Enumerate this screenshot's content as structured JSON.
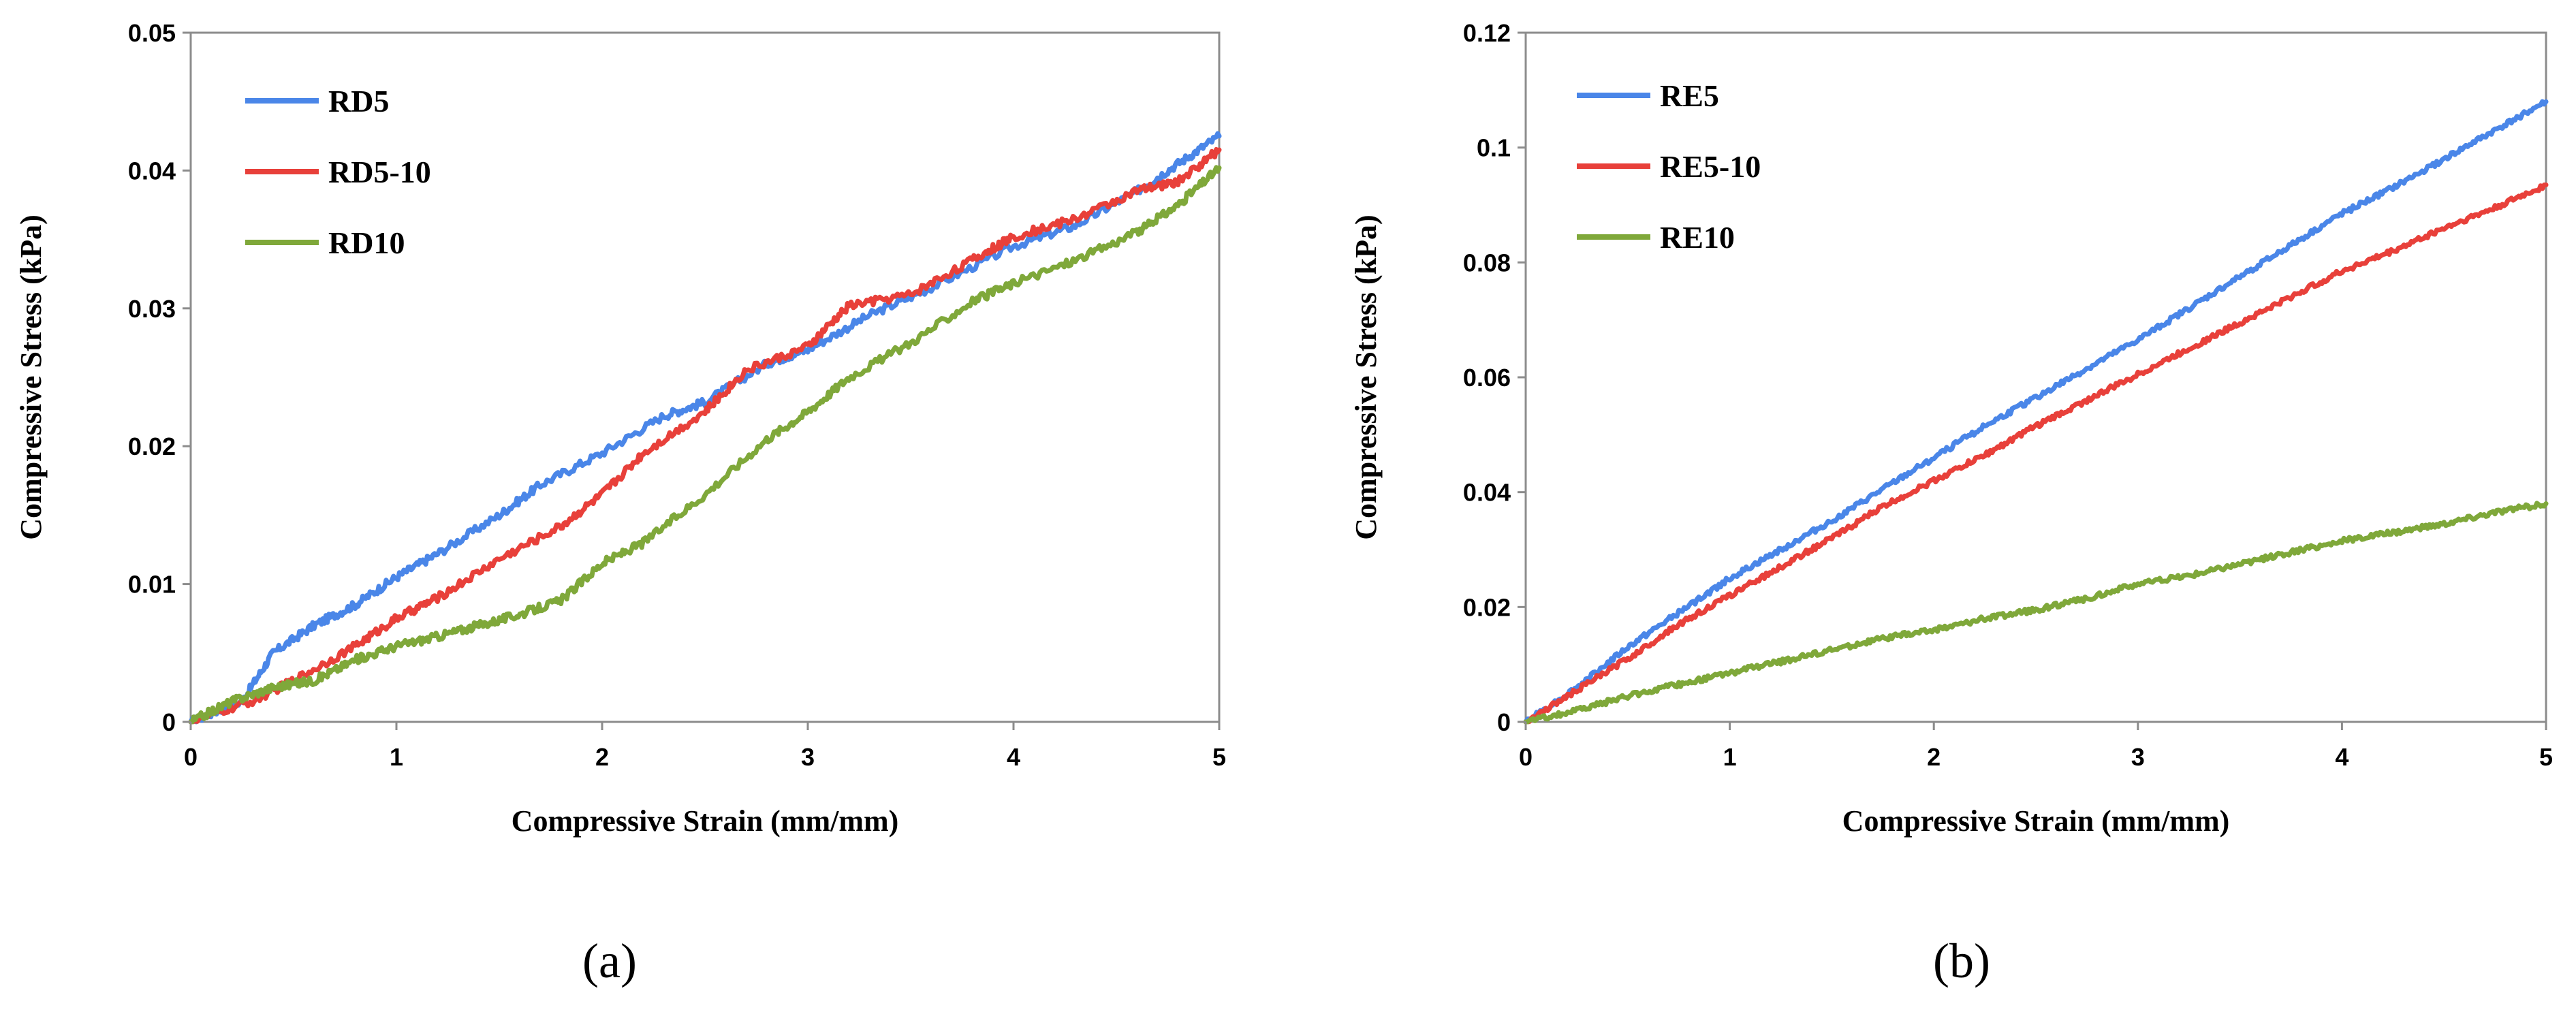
{
  "chart_data": [
    {
      "type": "line",
      "panel_label": "(a)",
      "xlabel": "Compressive Strain (mm/mm)",
      "ylabel": "Compressive Stress (kPa)",
      "xlim": [
        0,
        5
      ],
      "ylim": [
        0,
        0.05
      ],
      "x_ticks": [
        "0",
        "1",
        "2",
        "3",
        "4",
        "5"
      ],
      "y_ticks": [
        "0",
        "0.01",
        "0.02",
        "0.03",
        "0.04",
        "0.05"
      ],
      "legend_position": "top-left",
      "series": [
        {
          "name": "RD5",
          "color": "#4a86e8",
          "points": [
            [
              0,
              0
            ],
            [
              0.25,
              0.0015
            ],
            [
              0.4,
              0.005
            ],
            [
              0.6,
              0.007
            ],
            [
              0.8,
              0.0085
            ],
            [
              1.0,
              0.0105
            ],
            [
              1.2,
              0.0122
            ],
            [
              1.5,
              0.015
            ],
            [
              1.7,
              0.0172
            ],
            [
              2.0,
              0.0195
            ],
            [
              2.3,
              0.0222
            ],
            [
              2.5,
              0.0232
            ],
            [
              2.8,
              0.026
            ],
            [
              3.0,
              0.027
            ],
            [
              3.3,
              0.0295
            ],
            [
              3.6,
              0.0315
            ],
            [
              4.0,
              0.0345
            ],
            [
              4.3,
              0.036
            ],
            [
              4.6,
              0.0385
            ],
            [
              4.8,
              0.0405
            ],
            [
              5.0,
              0.0425
            ]
          ]
        },
        {
          "name": "RD5-10",
          "color": "#e8403a",
          "points": [
            [
              0,
              0
            ],
            [
              0.3,
              0.0015
            ],
            [
              0.5,
              0.003
            ],
            [
              0.8,
              0.0055
            ],
            [
              1.0,
              0.0075
            ],
            [
              1.2,
              0.009
            ],
            [
              1.5,
              0.0118
            ],
            [
              1.8,
              0.0142
            ],
            [
              2.0,
              0.0165
            ],
            [
              2.2,
              0.0195
            ],
            [
              2.5,
              0.0225
            ],
            [
              2.7,
              0.0255
            ],
            [
              3.0,
              0.0272
            ],
            [
              3.2,
              0.0302
            ],
            [
              3.5,
              0.031
            ],
            [
              3.8,
              0.0335
            ],
            [
              4.0,
              0.0352
            ],
            [
              4.3,
              0.0365
            ],
            [
              4.6,
              0.0385
            ],
            [
              4.8,
              0.0392
            ],
            [
              5.0,
              0.0415
            ]
          ]
        },
        {
          "name": "RD10",
          "color": "#7fa83a",
          "points": [
            [
              0,
              0
            ],
            [
              0.2,
              0.0015
            ],
            [
              0.4,
              0.0025
            ],
            [
              0.6,
              0.003
            ],
            [
              0.8,
              0.0045
            ],
            [
              1.0,
              0.0055
            ],
            [
              1.2,
              0.0062
            ],
            [
              1.4,
              0.007
            ],
            [
              1.6,
              0.0078
            ],
            [
              1.8,
              0.0088
            ],
            [
              2.0,
              0.0115
            ],
            [
              2.2,
              0.013
            ],
            [
              2.5,
              0.0165
            ],
            [
              2.8,
              0.0205
            ],
            [
              3.0,
              0.0225
            ],
            [
              3.2,
              0.025
            ],
            [
              3.5,
              0.0275
            ],
            [
              3.8,
              0.0305
            ],
            [
              4.0,
              0.0318
            ],
            [
              4.3,
              0.0335
            ],
            [
              4.6,
              0.0355
            ],
            [
              4.8,
              0.0375
            ],
            [
              5.0,
              0.0402
            ]
          ]
        }
      ]
    },
    {
      "type": "line",
      "panel_label": "(b)",
      "xlabel": "Compressive Strain (mm/mm)",
      "ylabel": "Compressive Stress (kPa)",
      "xlim": [
        0,
        5
      ],
      "ylim": [
        0,
        0.12
      ],
      "x_ticks": [
        "0",
        "1",
        "2",
        "3",
        "4",
        "5"
      ],
      "y_ticks": [
        "0",
        "0.02",
        "0.04",
        "0.06",
        "0.08",
        "0.1",
        "0.12"
      ],
      "legend_position": "top-left",
      "series": [
        {
          "name": "RE5",
          "color": "#4a86e8",
          "points": [
            [
              0,
              0
            ],
            [
              0.25,
              0.006
            ],
            [
              0.5,
              0.013
            ],
            [
              0.75,
              0.019
            ],
            [
              1.0,
              0.025
            ],
            [
              1.25,
              0.03
            ],
            [
              1.5,
              0.035
            ],
            [
              1.75,
              0.0405
            ],
            [
              2.0,
              0.046
            ],
            [
              2.25,
              0.0515
            ],
            [
              2.5,
              0.0565
            ],
            [
              2.75,
              0.0615
            ],
            [
              3.0,
              0.0665
            ],
            [
              3.25,
              0.072
            ],
            [
              3.5,
              0.0775
            ],
            [
              3.75,
              0.083
            ],
            [
              4.0,
              0.0885
            ],
            [
              4.25,
              0.093
            ],
            [
              4.5,
              0.098
            ],
            [
              4.75,
              0.103
            ],
            [
              5.0,
              0.108
            ]
          ]
        },
        {
          "name": "RE5-10",
          "color": "#e8403a",
          "points": [
            [
              0,
              0
            ],
            [
              0.25,
              0.0055
            ],
            [
              0.5,
              0.011
            ],
            [
              0.75,
              0.017
            ],
            [
              1.0,
              0.022
            ],
            [
              1.25,
              0.027
            ],
            [
              1.5,
              0.032
            ],
            [
              1.75,
              0.0375
            ],
            [
              2.0,
              0.042
            ],
            [
              2.25,
              0.0465
            ],
            [
              2.5,
              0.0515
            ],
            [
              2.75,
              0.056
            ],
            [
              3.0,
              0.0605
            ],
            [
              3.25,
              0.065
            ],
            [
              3.5,
              0.0695
            ],
            [
              3.75,
              0.074
            ],
            [
              4.0,
              0.0785
            ],
            [
              4.25,
              0.082
            ],
            [
              4.5,
              0.086
            ],
            [
              4.75,
              0.0895
            ],
            [
              5.0,
              0.0935
            ]
          ]
        },
        {
          "name": "RE10",
          "color": "#7fa83a",
          "points": [
            [
              0,
              0
            ],
            [
              0.25,
              0.002
            ],
            [
              0.5,
              0.0045
            ],
            [
              0.75,
              0.0065
            ],
            [
              1.0,
              0.0085
            ],
            [
              1.25,
              0.0105
            ],
            [
              1.5,
              0.0125
            ],
            [
              1.75,
              0.0145
            ],
            [
              2.0,
              0.016
            ],
            [
              2.25,
              0.018
            ],
            [
              2.5,
              0.0195
            ],
            [
              2.75,
              0.0215
            ],
            [
              3.0,
              0.024
            ],
            [
              3.25,
              0.0255
            ],
            [
              3.5,
              0.0275
            ],
            [
              3.75,
              0.0295
            ],
            [
              4.0,
              0.0315
            ],
            [
              4.25,
              0.033
            ],
            [
              4.5,
              0.0345
            ],
            [
              4.75,
              0.0365
            ],
            [
              5.0,
              0.038
            ]
          ]
        }
      ]
    }
  ]
}
